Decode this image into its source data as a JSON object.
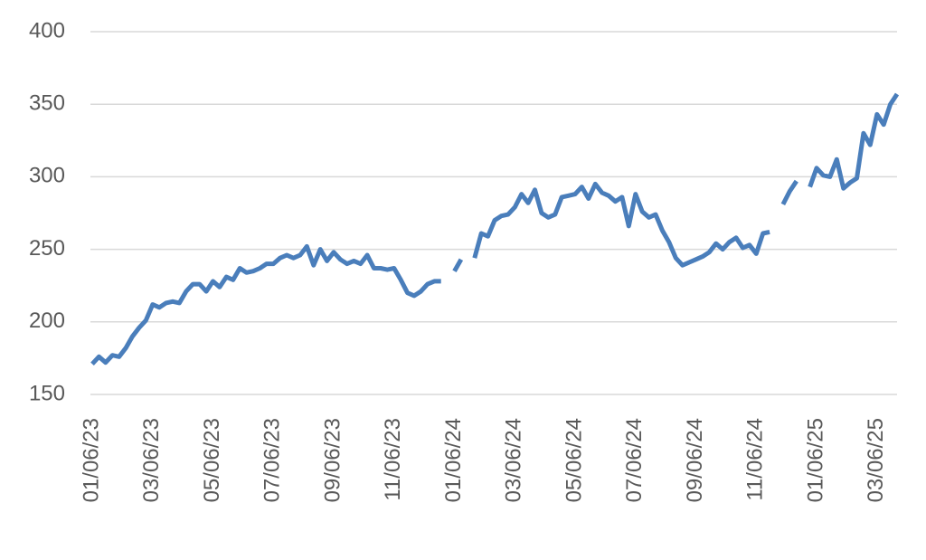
{
  "chart_data": {
    "type": "line",
    "categories": [
      "01/06/23",
      null,
      null,
      null,
      null,
      null,
      null,
      null,
      null,
      "03/06/23",
      null,
      null,
      null,
      null,
      null,
      null,
      null,
      null,
      "05/06/23",
      null,
      null,
      null,
      null,
      null,
      null,
      null,
      null,
      "07/06/23",
      null,
      null,
      null,
      null,
      null,
      null,
      null,
      null,
      "09/06/23",
      null,
      null,
      null,
      null,
      null,
      null,
      null,
      null,
      "11/06/23",
      null,
      null,
      null,
      null,
      null,
      null,
      null,
      null,
      "01/06/24",
      null,
      null,
      null,
      null,
      null,
      null,
      null,
      null,
      "03/06/24",
      null,
      null,
      null,
      null,
      null,
      null,
      null,
      null,
      "05/06/24",
      null,
      null,
      null,
      null,
      null,
      null,
      null,
      null,
      "07/06/24",
      null,
      null,
      null,
      null,
      null,
      null,
      null,
      null,
      "09/06/24",
      null,
      null,
      null,
      null,
      null,
      null,
      null,
      null,
      "11/06/24",
      null,
      null,
      null,
      null,
      null,
      null,
      null,
      null,
      "01/06/25",
      null,
      null,
      null,
      null,
      null,
      null,
      null,
      null,
      "03/06/25",
      null,
      null,
      null
    ],
    "series": [
      {
        "color": "#4a7ebb",
        "values": [
          171,
          176,
          172,
          177,
          176,
          182,
          190,
          196,
          201,
          212,
          210,
          213,
          214,
          213,
          221,
          226,
          226,
          221,
          228,
          224,
          231,
          229,
          237,
          234,
          235,
          237,
          240,
          240,
          244,
          246,
          244,
          246,
          252,
          239,
          250,
          242,
          248,
          243,
          240,
          242,
          240,
          246,
          237,
          237,
          236,
          237,
          229,
          220,
          218,
          221,
          226,
          228,
          228,
          null,
          235,
          243,
          null,
          244,
          261,
          259,
          270,
          273,
          274,
          279,
          288,
          282,
          291,
          275,
          272,
          274,
          286,
          287,
          288,
          293,
          285,
          295,
          289,
          287,
          283,
          286,
          266,
          288,
          276,
          272,
          274,
          263,
          255,
          244,
          239,
          241,
          243,
          245,
          248,
          254,
          250,
          255,
          258,
          251,
          253,
          247,
          261,
          262,
          null,
          281,
          290,
          297,
          null,
          293,
          306,
          301,
          300,
          312,
          292,
          296,
          299,
          330,
          322,
          343,
          336,
          350,
          357
        ]
      }
    ],
    "ylim": [
      150,
      400
    ],
    "yticks": [
      150,
      200,
      250,
      300,
      350,
      400
    ],
    "grid": true
  }
}
